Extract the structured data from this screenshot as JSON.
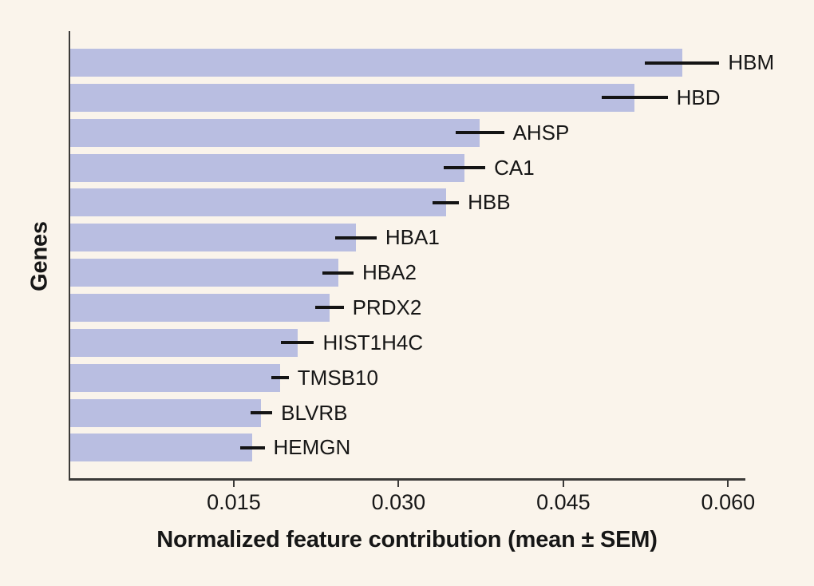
{
  "figure": {
    "background_color": "#faf4eb",
    "bar_color": "#b9bee1",
    "spine_color": "#3b3a38",
    "error_bar_color": "#141414",
    "text_color": "#161616"
  },
  "chart_data": {
    "type": "bar",
    "orientation": "horizontal",
    "title": "",
    "xlabel": "Normalized feature contribution (mean ± SEM)",
    "ylabel": "Genes",
    "xlim": [
      0,
      0.0615
    ],
    "x_ticks": [
      0.015,
      0.03,
      0.045,
      0.06
    ],
    "x_tick_labels": [
      "0.015",
      "0.030",
      "0.045",
      "0.060"
    ],
    "grid": false,
    "legend": false,
    "error_bars": "SEM, horizontal caps-less lines at bar ends",
    "categories": [
      "HBM",
      "HBD",
      "AHSP",
      "CA1",
      "HBB",
      "HBA1",
      "HBA2",
      "PRDX2",
      "HIST1H4C",
      "TMSB10",
      "BLVRB",
      "HEMGN"
    ],
    "values": [
      0.0558,
      0.0515,
      0.0374,
      0.036,
      0.0343,
      0.0261,
      0.0245,
      0.0237,
      0.0208,
      0.0192,
      0.0175,
      0.0167
    ],
    "sem": [
      0.0034,
      0.003,
      0.0022,
      0.0019,
      0.0012,
      0.0019,
      0.0014,
      0.0013,
      0.0015,
      0.0008,
      0.001,
      0.0011
    ]
  }
}
